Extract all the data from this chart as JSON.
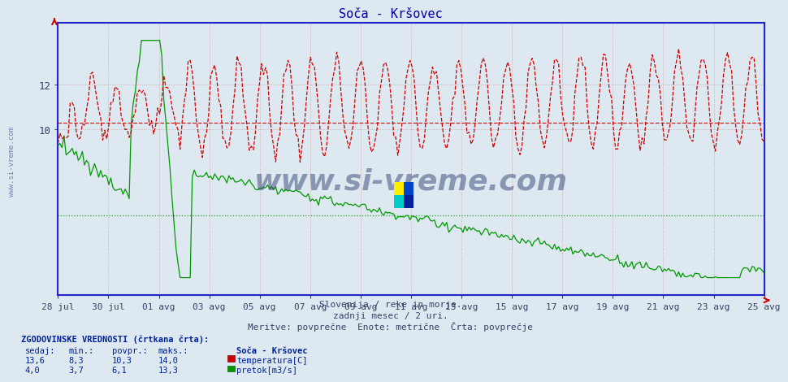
{
  "title": "Soča - Kršovec",
  "background_color": "#dde8f0",
  "plot_bg_color": "#dde8f0",
  "frame_color": "#2222cc",
  "grid_color": "#bbbbcc",
  "xlabel_texts": [
    "28 jul",
    "30 jul",
    "01 avg",
    "03 avg",
    "05 avg",
    "07 avg",
    "09 avg",
    "11 avg",
    "13 avg",
    "15 avg",
    "17 avg",
    "19 avg",
    "21 avg",
    "23 avg",
    "25 avg"
  ],
  "ylabel_ticks": [
    10,
    12
  ],
  "ylim_min": 2.5,
  "ylim_max": 14.8,
  "temp_color": "#cc0000",
  "flow_color": "#009900",
  "avg_temp": 10.3,
  "avg_flow": 6.1,
  "watermark": "www.si-vreme.com",
  "subtitle1": "Slovenija / reke in morje.",
  "subtitle2": "zadnji mesec / 2 uri.",
  "subtitle3": "Meritve: povprečne  Enote: metrične  Črta: povprečje",
  "legend_title": "ZGODOVINSKE VREDNOSTI (črtkana črta):",
  "legend_headers": [
    "sedaj:",
    "min.:",
    "povpr.:",
    "maks.:"
  ],
  "legend_temp_vals": [
    "13,6",
    "8,3",
    "10,3",
    "14,0"
  ],
  "legend_flow_vals": [
    "4,0",
    "3,7",
    "6,1",
    "13,3"
  ],
  "legend_temp_label": "temperatura[C]",
  "legend_flow_label": "pretok[m3/s]",
  "station_label": "Soča - Kršovec"
}
